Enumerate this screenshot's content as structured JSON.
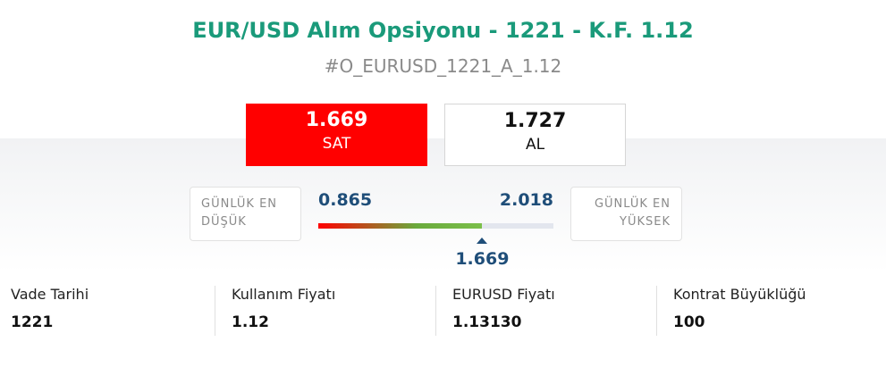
{
  "header": {
    "title": "EUR/USD Alım Opsiyonu - 1221 - K.F. 1.12",
    "symbol": "#O_EURUSD_1221_A_1.12"
  },
  "quote": {
    "sell": {
      "price": "1.669",
      "label": "SAT"
    },
    "buy": {
      "price": "1.727",
      "label": "AL"
    }
  },
  "range": {
    "low_label": "GÜNLÜK EN DÜŞÜK",
    "high_label": "GÜNLÜK EN YÜKSEK",
    "low": 0.865,
    "high": 2.018,
    "current": 1.669
  },
  "details": [
    {
      "label": "Vade Tarihi",
      "value": "1221"
    },
    {
      "label": "Kullanım Fiyatı",
      "value": "1.12"
    },
    {
      "label": "EURUSD Fiyatı",
      "value": "1.13130"
    },
    {
      "label": "Kontrat Büyüklüğü",
      "value": "100"
    }
  ]
}
